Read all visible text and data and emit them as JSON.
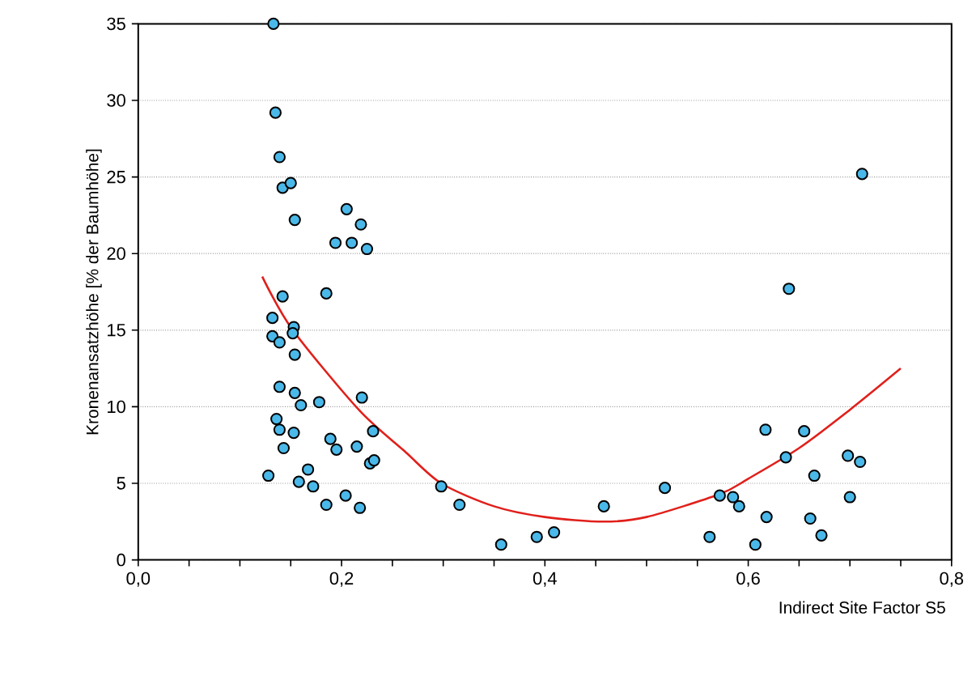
{
  "chart_data": {
    "type": "scatter",
    "xlabel": "Indirect Site Factor S5",
    "ylabel": "Kronenansatzhöhe [% der Baumhöhe]",
    "xlim": [
      0,
      0.8
    ],
    "ylim": [
      0,
      35
    ],
    "xticks": [
      {
        "value": 0,
        "label": "0,0"
      },
      {
        "value": 0.05,
        "label": null
      },
      {
        "value": 0.1,
        "label": null
      },
      {
        "value": 0.15,
        "label": null
      },
      {
        "value": 0.2,
        "label": "0,2"
      },
      {
        "value": 0.25,
        "label": null
      },
      {
        "value": 0.3,
        "label": null
      },
      {
        "value": 0.35,
        "label": null
      },
      {
        "value": 0.4,
        "label": "0,4"
      },
      {
        "value": 0.45,
        "label": null
      },
      {
        "value": 0.5,
        "label": null
      },
      {
        "value": 0.55,
        "label": null
      },
      {
        "value": 0.6,
        "label": "0,6"
      },
      {
        "value": 0.65,
        "label": null
      },
      {
        "value": 0.7,
        "label": null
      },
      {
        "value": 0.75,
        "label": null
      },
      {
        "value": 0.8,
        "label": "0,8"
      }
    ],
    "yticks": [
      0,
      5,
      10,
      15,
      20,
      25,
      30,
      35
    ],
    "grid": "y",
    "series": [
      {
        "marker": "circle",
        "color": "#4ab8e8",
        "x": [
          0.133,
          0.135,
          0.139,
          0.142,
          0.15,
          0.154,
          0.205,
          0.219,
          0.194,
          0.21,
          0.225,
          0.142,
          0.185,
          0.132,
          0.153,
          0.132,
          0.139,
          0.152,
          0.154,
          0.139,
          0.154,
          0.16,
          0.178,
          0.22,
          0.136,
          0.139,
          0.153,
          0.231,
          0.143,
          0.189,
          0.195,
          0.215,
          0.228,
          0.232,
          0.128,
          0.158,
          0.167,
          0.172,
          0.185,
          0.204,
          0.218,
          0.298,
          0.316,
          0.357,
          0.392,
          0.409,
          0.458,
          0.518,
          0.562,
          0.572,
          0.585,
          0.591,
          0.607,
          0.618,
          0.617,
          0.637,
          0.655,
          0.665,
          0.661,
          0.672,
          0.698,
          0.71,
          0.7,
          0.64,
          0.712
        ],
        "values": [
          35,
          29.2,
          26.3,
          24.3,
          24.6,
          22.2,
          22.9,
          21.9,
          20.7,
          20.7,
          20.3,
          17.2,
          17.4,
          15.8,
          15.2,
          14.6,
          14.2,
          14.8,
          13.4,
          11.3,
          10.9,
          10.1,
          10.3,
          10.6,
          9.2,
          8.5,
          8.3,
          8.4,
          7.3,
          7.9,
          7.2,
          7.4,
          6.3,
          6.5,
          5.5,
          5.1,
          5.9,
          4.8,
          3.6,
          4.2,
          3.4,
          4.8,
          3.6,
          1.0,
          1.5,
          1.8,
          3.5,
          4.7,
          1.5,
          4.2,
          4.1,
          3.5,
          1.0,
          2.8,
          8.5,
          6.7,
          8.4,
          5.5,
          2.7,
          1.6,
          6.8,
          6.4,
          4.1,
          17.7,
          25.2
        ]
      },
      {
        "type": "line",
        "marker": "none",
        "color": "#e0201b",
        "x": [
          0.122,
          0.151,
          0.217,
          0.262,
          0.298,
          0.35,
          0.4,
          0.458,
          0.5,
          0.572,
          0.6,
          0.65,
          0.7,
          0.75
        ],
        "values": [
          18.5,
          15.1,
          9.8,
          7.1,
          5.0,
          3.5,
          2.8,
          2.5,
          2.8,
          4.3,
          5.3,
          7.3,
          9.8,
          12.5
        ]
      }
    ]
  }
}
